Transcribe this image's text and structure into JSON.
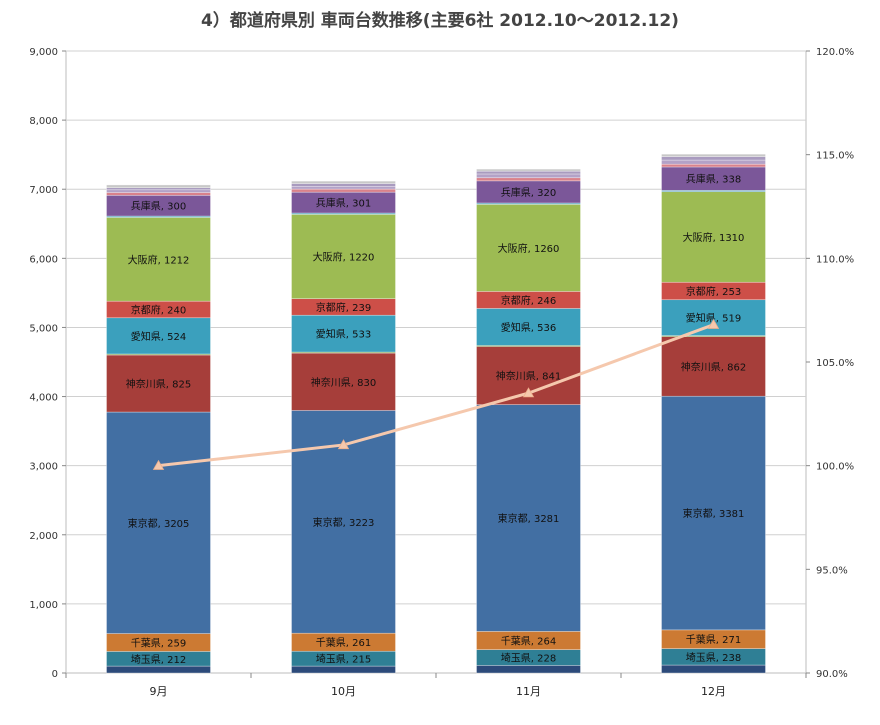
{
  "page": {
    "title": "4）都道府県別 車両台数推移(主要6社 2012.10〜2012.12)"
  },
  "chart_data": {
    "type": "bar",
    "stacked": true,
    "title": "4）都道府県別 車両台数推移(主要6社 2012.10〜2012.12)",
    "categories": [
      "9月",
      "10月",
      "11月",
      "12月"
    ],
    "ylim": [
      0,
      9000
    ],
    "y_ticks": [
      "0",
      "1,000",
      "2,000",
      "3,000",
      "4,000",
      "5,000",
      "6,000",
      "7,000",
      "8,000",
      "9,000"
    ],
    "y2lim": [
      90,
      120
    ],
    "y2_ticks": [
      "90.0%",
      "95.0%",
      "100.0%",
      "105.0%",
      "110.0%",
      "115.0%",
      "120.0%"
    ],
    "grid": true,
    "series": [
      {
        "key": "s0",
        "values": [
          100,
          100,
          110,
          115
        ],
        "color": "#2c4a7a"
      },
      {
        "name": "埼玉県",
        "values": [
          212,
          215,
          228,
          238
        ],
        "color": "#2f7f95"
      },
      {
        "name": "千葉県",
        "values": [
          259,
          261,
          264,
          271
        ],
        "color": "#cc7a33"
      },
      {
        "name": "東京都",
        "values": [
          3205,
          3223,
          3281,
          3381
        ],
        "color": "#426fa3"
      },
      {
        "name": "神奈川県",
        "values": [
          825,
          830,
          841,
          862
        ],
        "color": "#a63e3a"
      },
      {
        "key": "s5",
        "values": [
          15,
          15,
          15,
          15
        ],
        "color": "#7a9a42"
      },
      {
        "name": "愛知県",
        "values": [
          524,
          533,
          536,
          519
        ],
        "color": "#3ba0bd"
      },
      {
        "name": "京都府",
        "values": [
          240,
          239,
          246,
          253
        ],
        "color": "#cd4f48"
      },
      {
        "name": "大阪府",
        "values": [
          1212,
          1220,
          1260,
          1310
        ],
        "color": "#9dbb53"
      },
      {
        "key": "s9",
        "values": [
          20,
          20,
          20,
          20
        ],
        "color": "#5aa7c0"
      },
      {
        "name": "兵庫県",
        "values": [
          300,
          301,
          320,
          338
        ],
        "color": "#7b5799"
      },
      {
        "key": "s11",
        "values": [
          40,
          45,
          45,
          40
        ],
        "color": "#d9828b"
      },
      {
        "key": "s12",
        "values": [
          40,
          40,
          55,
          60
        ],
        "color": "#b3a2c7"
      },
      {
        "key": "s13",
        "values": [
          30,
          40,
          40,
          50
        ],
        "color": "#a99bbf"
      },
      {
        "key": "s14",
        "values": [
          40,
          35,
          30,
          35
        ],
        "color": "#c8c8c8"
      }
    ],
    "line": {
      "values": [
        100.0,
        101.0,
        103.5,
        106.8
      ],
      "axis": "secondary",
      "color": "#f5c8ad"
    }
  }
}
